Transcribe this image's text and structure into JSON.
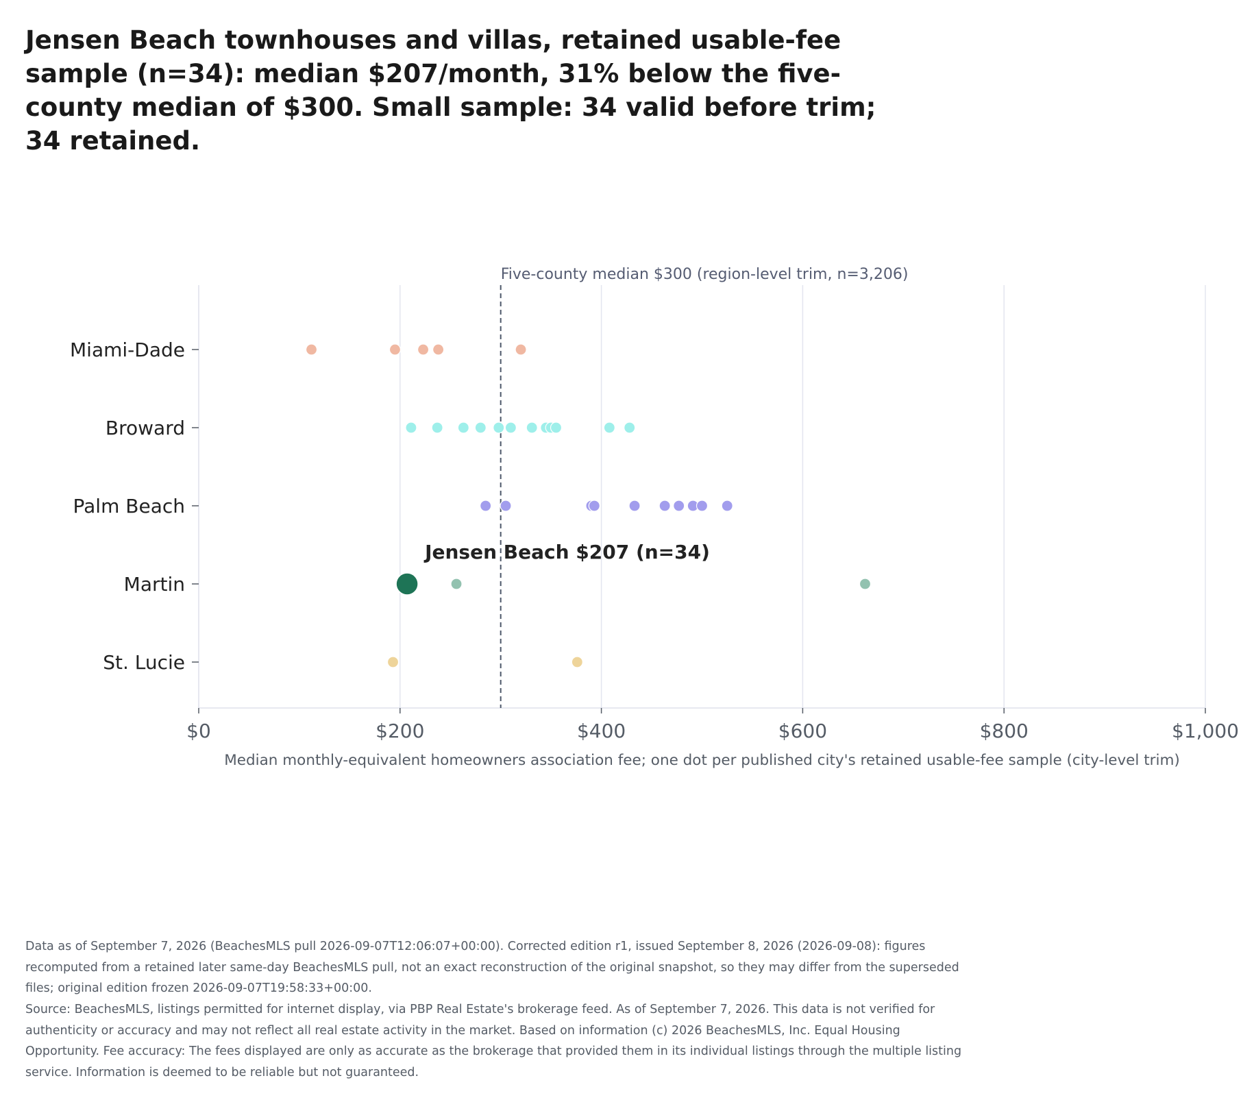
{
  "chart_data": {
    "type": "scatter",
    "title": "Jensen Beach townhouses and villas, retained usable-fee sample (n=34): median $207/month, 31% below the five-county median of $300. Small sample: 34 valid before trim; 34 retained.",
    "xlabel": "Median monthly-equivalent homeowners association fee; one dot per published city's retained usable-fee sample (city-level trim)",
    "ylabel": "",
    "xlim": [
      0,
      1000
    ],
    "x_ticks": [
      0,
      200,
      400,
      600,
      800,
      1000
    ],
    "x_tick_labels": [
      "$0",
      "$200",
      "$400",
      "$600",
      "$800",
      "$1,000"
    ],
    "categories": [
      "Miami-Dade",
      "Broward",
      "Palm Beach",
      "Martin",
      "St. Lucie"
    ],
    "grid": "vertical",
    "series": [
      {
        "category": "Miami-Dade",
        "color": "#f0b8a2",
        "values": [
          112,
          195,
          223,
          238,
          320
        ]
      },
      {
        "category": "Broward",
        "color": "#9eefea",
        "values": [
          211,
          237,
          263,
          280,
          298,
          310,
          331,
          345,
          350,
          355,
          408,
          428
        ]
      },
      {
        "category": "Palm Beach",
        "color": "#a29ded",
        "values": [
          285,
          305,
          390,
          393,
          433,
          463,
          477,
          491,
          500,
          525
        ]
      },
      {
        "category": "Martin",
        "color": "#93c2b0",
        "values": [
          256,
          662
        ]
      },
      {
        "category": "St. Lucie",
        "color": "#eed49a",
        "values": [
          193,
          376
        ]
      }
    ],
    "highlight": {
      "category": "Martin",
      "value": 207,
      "color": "#1e7456",
      "label": "Jensen Beach $207 (n=34)"
    },
    "reference_line": {
      "value": 300,
      "label": "Five-county median $300 (region-level trim, n=3,206)",
      "color": "#4d586a"
    }
  },
  "footnotes": [
    "Data as of September 7, 2026 (BeachesMLS pull 2026-09-07T12:06:07+00:00). Corrected edition r1, issued September 8, 2026 (2026-09-08): figures recomputed from a retained later same-day BeachesMLS pull, not an exact reconstruction of the original snapshot, so they may differ from the superseded files; original edition frozen 2026-09-07T19:58:33+00:00.",
    "Source: BeachesMLS, listings permitted for internet display, via PBP Real Estate's brokerage feed. As of September 7, 2026. This data is not verified for authenticity or accuracy and may not reflect all real estate activity in the market. Based on information (c) 2026 BeachesMLS, Inc. Equal Housing Opportunity. Fee accuracy: The fees displayed are only as accurate as the brokerage that provided them in its individual listings through the multiple listing service. Information is deemed to be reliable but not guaranteed."
  ]
}
